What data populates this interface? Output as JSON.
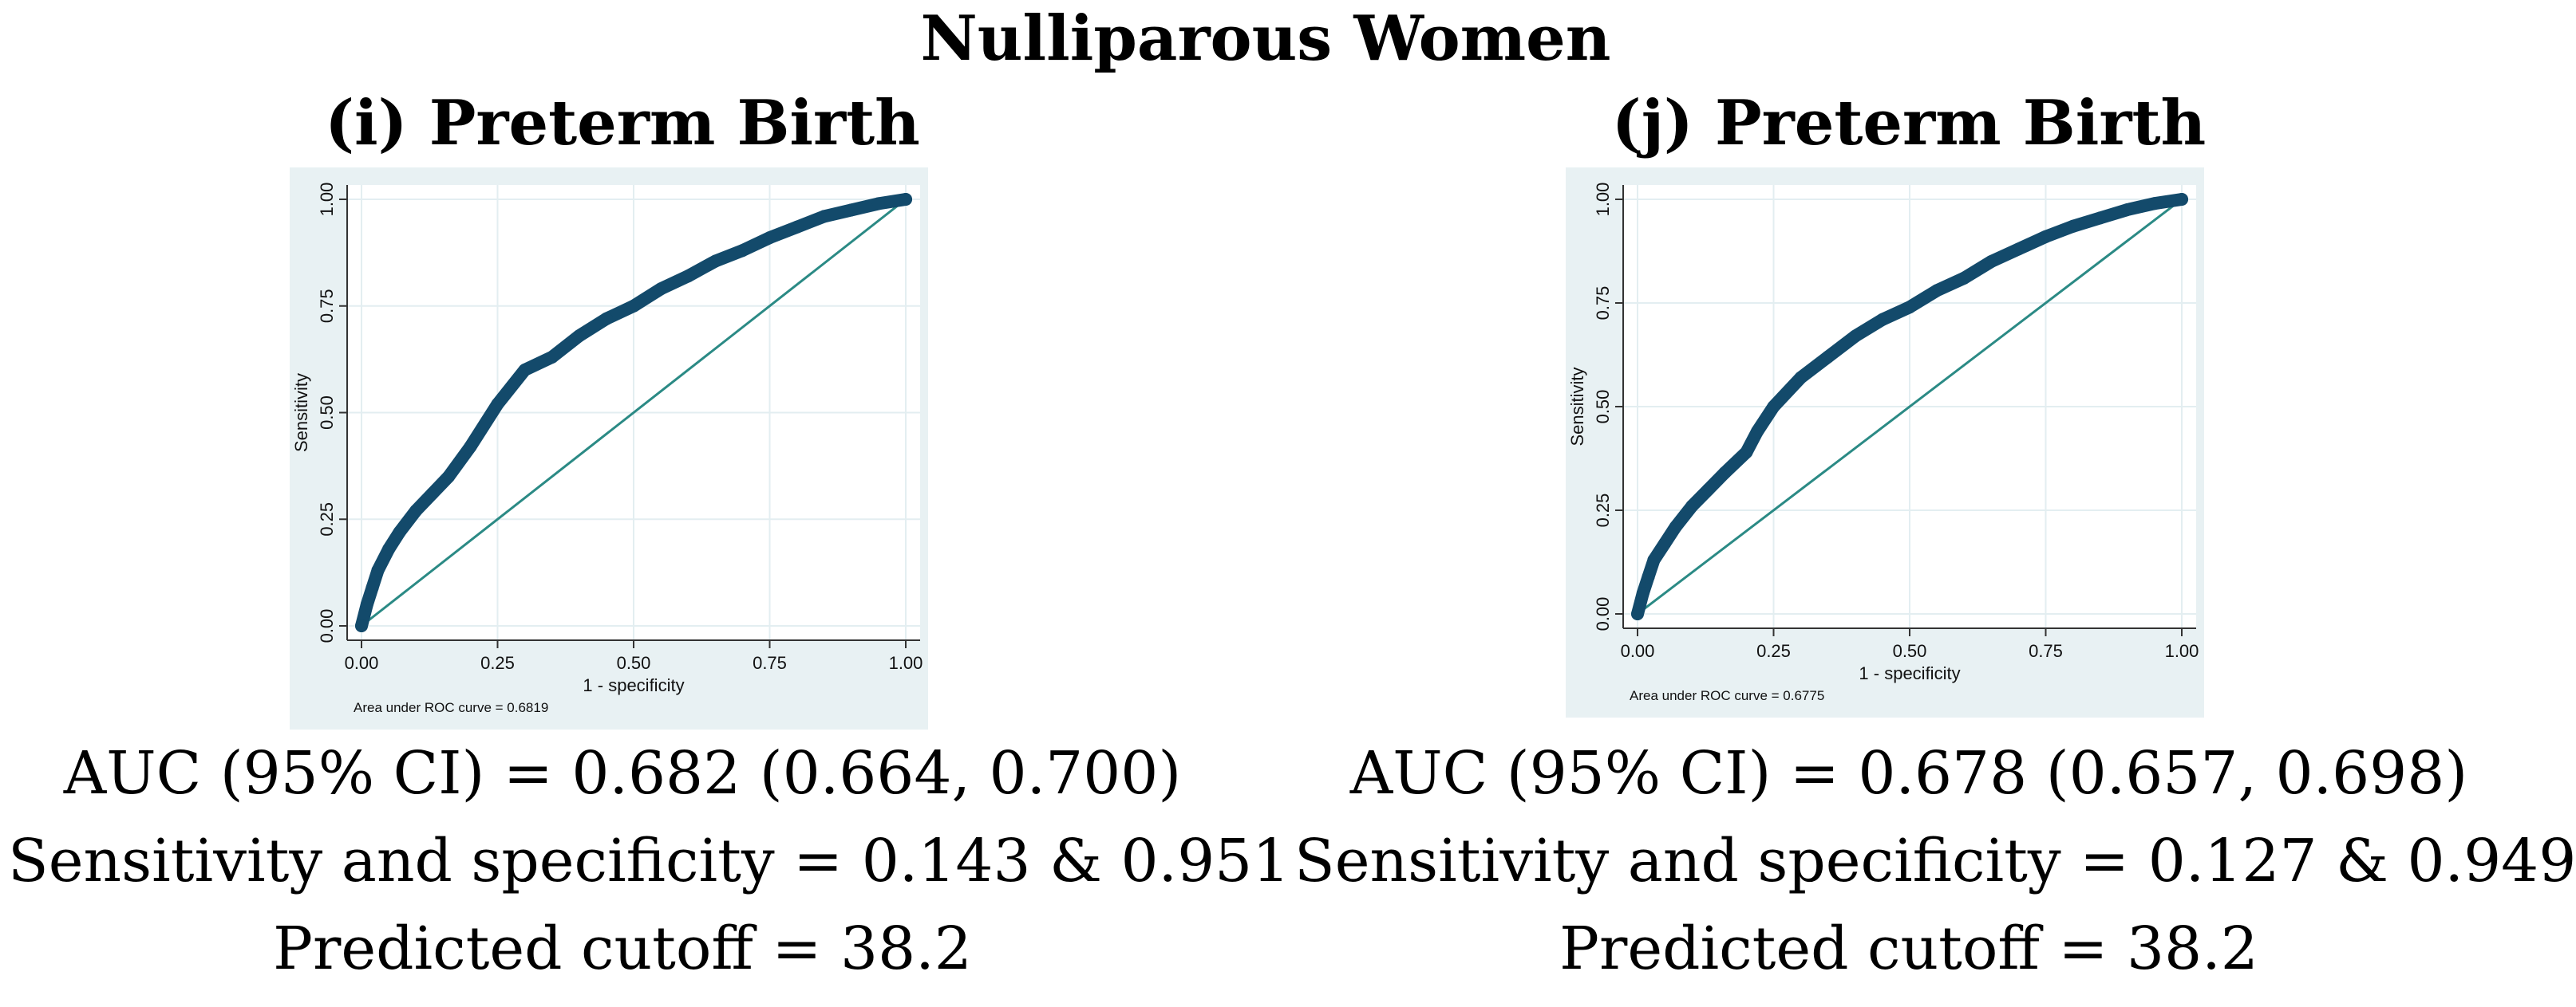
{
  "figure": {
    "title": "Nulliparous Women"
  },
  "colors": {
    "plot_bg": "#e8f1f3",
    "inner_bg": "#ffffff",
    "grid": "#e3eef1",
    "roc_curve": "#134a6b",
    "reference_line": "#2b8a85"
  },
  "panels": [
    {
      "title": "(i) Preterm Birth",
      "auc_text": "AUC (95% CI) = 0.682 (0.664, 0.700)",
      "sens_spec_text": "Sensitivity and specificity = 0.143 & 0.951",
      "cutoff_text": "Predicted cutoff = 38.2"
    },
    {
      "title": "(j) Preterm Birth",
      "auc_text": "AUC (95% CI) = 0.678 (0.657, 0.698)",
      "sens_spec_text": "Sensitivity and specificity = 0.127 & 0.949",
      "cutoff_text": "Predicted cutoff = 38.2"
    }
  ],
  "chart_data": [
    {
      "type": "line",
      "title": "",
      "xlabel": "1 - specificity",
      "ylabel": "Sensitivity",
      "xlim": [
        0,
        1
      ],
      "ylim": [
        0,
        1
      ],
      "x_ticks": [
        "0.00",
        "0.25",
        "0.50",
        "0.75",
        "1.00"
      ],
      "y_ticks": [
        "0.00",
        "0.25",
        "0.50",
        "0.75",
        "1.00"
      ],
      "note": "Area under ROC curve = 0.6819",
      "grid": true,
      "series": [
        {
          "name": "ROC curve",
          "x": [
            0,
            0.01,
            0.02,
            0.03,
            0.05,
            0.07,
            0.1,
            0.13,
            0.16,
            0.2,
            0.25,
            0.3,
            0.35,
            0.4,
            0.45,
            0.5,
            0.55,
            0.6,
            0.65,
            0.7,
            0.75,
            0.8,
            0.85,
            0.9,
            0.95,
            1.0
          ],
          "y": [
            0,
            0.05,
            0.09,
            0.13,
            0.18,
            0.22,
            0.27,
            0.31,
            0.35,
            0.42,
            0.52,
            0.6,
            0.63,
            0.68,
            0.72,
            0.75,
            0.79,
            0.82,
            0.855,
            0.88,
            0.91,
            0.935,
            0.96,
            0.975,
            0.99,
            1.0
          ]
        },
        {
          "name": "Reference line",
          "x": [
            0,
            1
          ],
          "y": [
            0,
            1
          ]
        }
      ]
    },
    {
      "type": "line",
      "title": "",
      "xlabel": "1 - specificity",
      "ylabel": "Sensitivity",
      "xlim": [
        0,
        1
      ],
      "ylim": [
        0,
        1
      ],
      "x_ticks": [
        "0.00",
        "0.25",
        "0.50",
        "0.75",
        "1.00"
      ],
      "y_ticks": [
        "0.00",
        "0.25",
        "0.50",
        "0.75",
        "1.00"
      ],
      "note": "Area under ROC curve = 0.6775",
      "grid": true,
      "series": [
        {
          "name": "ROC curve",
          "x": [
            0,
            0.01,
            0.02,
            0.03,
            0.05,
            0.07,
            0.1,
            0.13,
            0.16,
            0.2,
            0.22,
            0.25,
            0.3,
            0.35,
            0.4,
            0.45,
            0.5,
            0.55,
            0.6,
            0.65,
            0.7,
            0.75,
            0.8,
            0.85,
            0.9,
            0.95,
            1.0
          ],
          "y": [
            0,
            0.05,
            0.09,
            0.13,
            0.17,
            0.21,
            0.26,
            0.3,
            0.34,
            0.39,
            0.44,
            0.5,
            0.57,
            0.62,
            0.67,
            0.71,
            0.74,
            0.78,
            0.81,
            0.85,
            0.88,
            0.91,
            0.935,
            0.955,
            0.975,
            0.99,
            1.0
          ]
        },
        {
          "name": "Reference line",
          "x": [
            0,
            1
          ],
          "y": [
            0,
            1
          ]
        }
      ]
    }
  ]
}
